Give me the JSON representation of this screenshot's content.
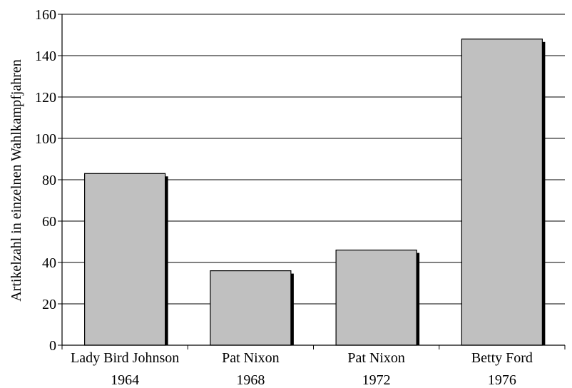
{
  "chart_data": {
    "type": "bar",
    "categories": [
      [
        "Lady Bird Johnson",
        "1964"
      ],
      [
        "Pat Nixon",
        "1968"
      ],
      [
        "Pat Nixon",
        "1972"
      ],
      [
        "Betty Ford",
        "1976"
      ]
    ],
    "values": [
      83,
      36,
      46,
      148
    ],
    "title": "",
    "xlabel": "",
    "ylabel": "Artikelzahl in einzelnen Wahlkampfjahren",
    "ylim": [
      0,
      160
    ],
    "yticks": [
      0,
      20,
      40,
      60,
      80,
      100,
      120,
      140,
      160
    ],
    "grid": true,
    "bar_color": "#c0c0c0",
    "shadow_color": "#000000"
  }
}
